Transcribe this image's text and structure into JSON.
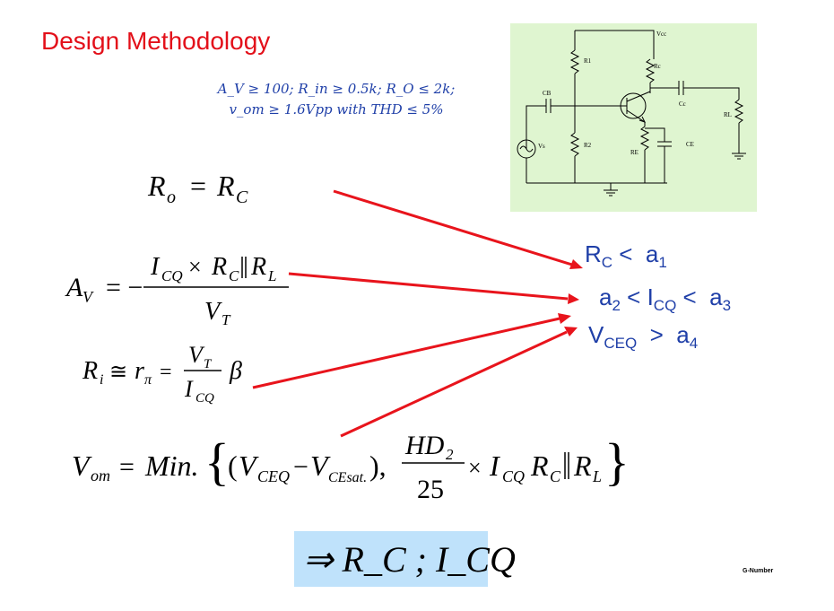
{
  "slide": {
    "title": "Design Methodology",
    "spec_line1": "A_V ≥ 100; R_in ≥ 0.5k; R_O ≤ 2k;",
    "spec_line2": "v_om ≥ 1.6Vpp with THD ≤ 5%",
    "footer": "G-Number"
  },
  "circuit": {
    "vcc_label": "Vcc",
    "r1_label": "R1",
    "r2_label": "R2",
    "rc_label": "Rc",
    "re_label": "RE",
    "rl_label": "RL",
    "cb_label": "CB",
    "cc_label": "Cc",
    "ce_label": "CE",
    "vs_label": "Vs"
  },
  "results": {
    "r1_sym": "R",
    "r1_sub": "C",
    "r1_rel": " <  a",
    "r1_idx": "1",
    "r2_pre": "a",
    "r2_idx": "2",
    "r2_rel": " < I",
    "r2_sub": "CQ",
    "r2_rel2": " <  a",
    "r2_idx2": "3",
    "r3_sym": "V",
    "r3_sub": "CEQ",
    "r3_rel": "  >  a",
    "r3_idx": "4"
  },
  "conclusion": "⇒ R_C ; I_CQ",
  "colors": {
    "title": "#e3101a",
    "blue": "#1f3fa8",
    "arrow": "#e8141c",
    "circuit_bg": "#dff5d0",
    "box_bg": "#bfe2fb"
  }
}
